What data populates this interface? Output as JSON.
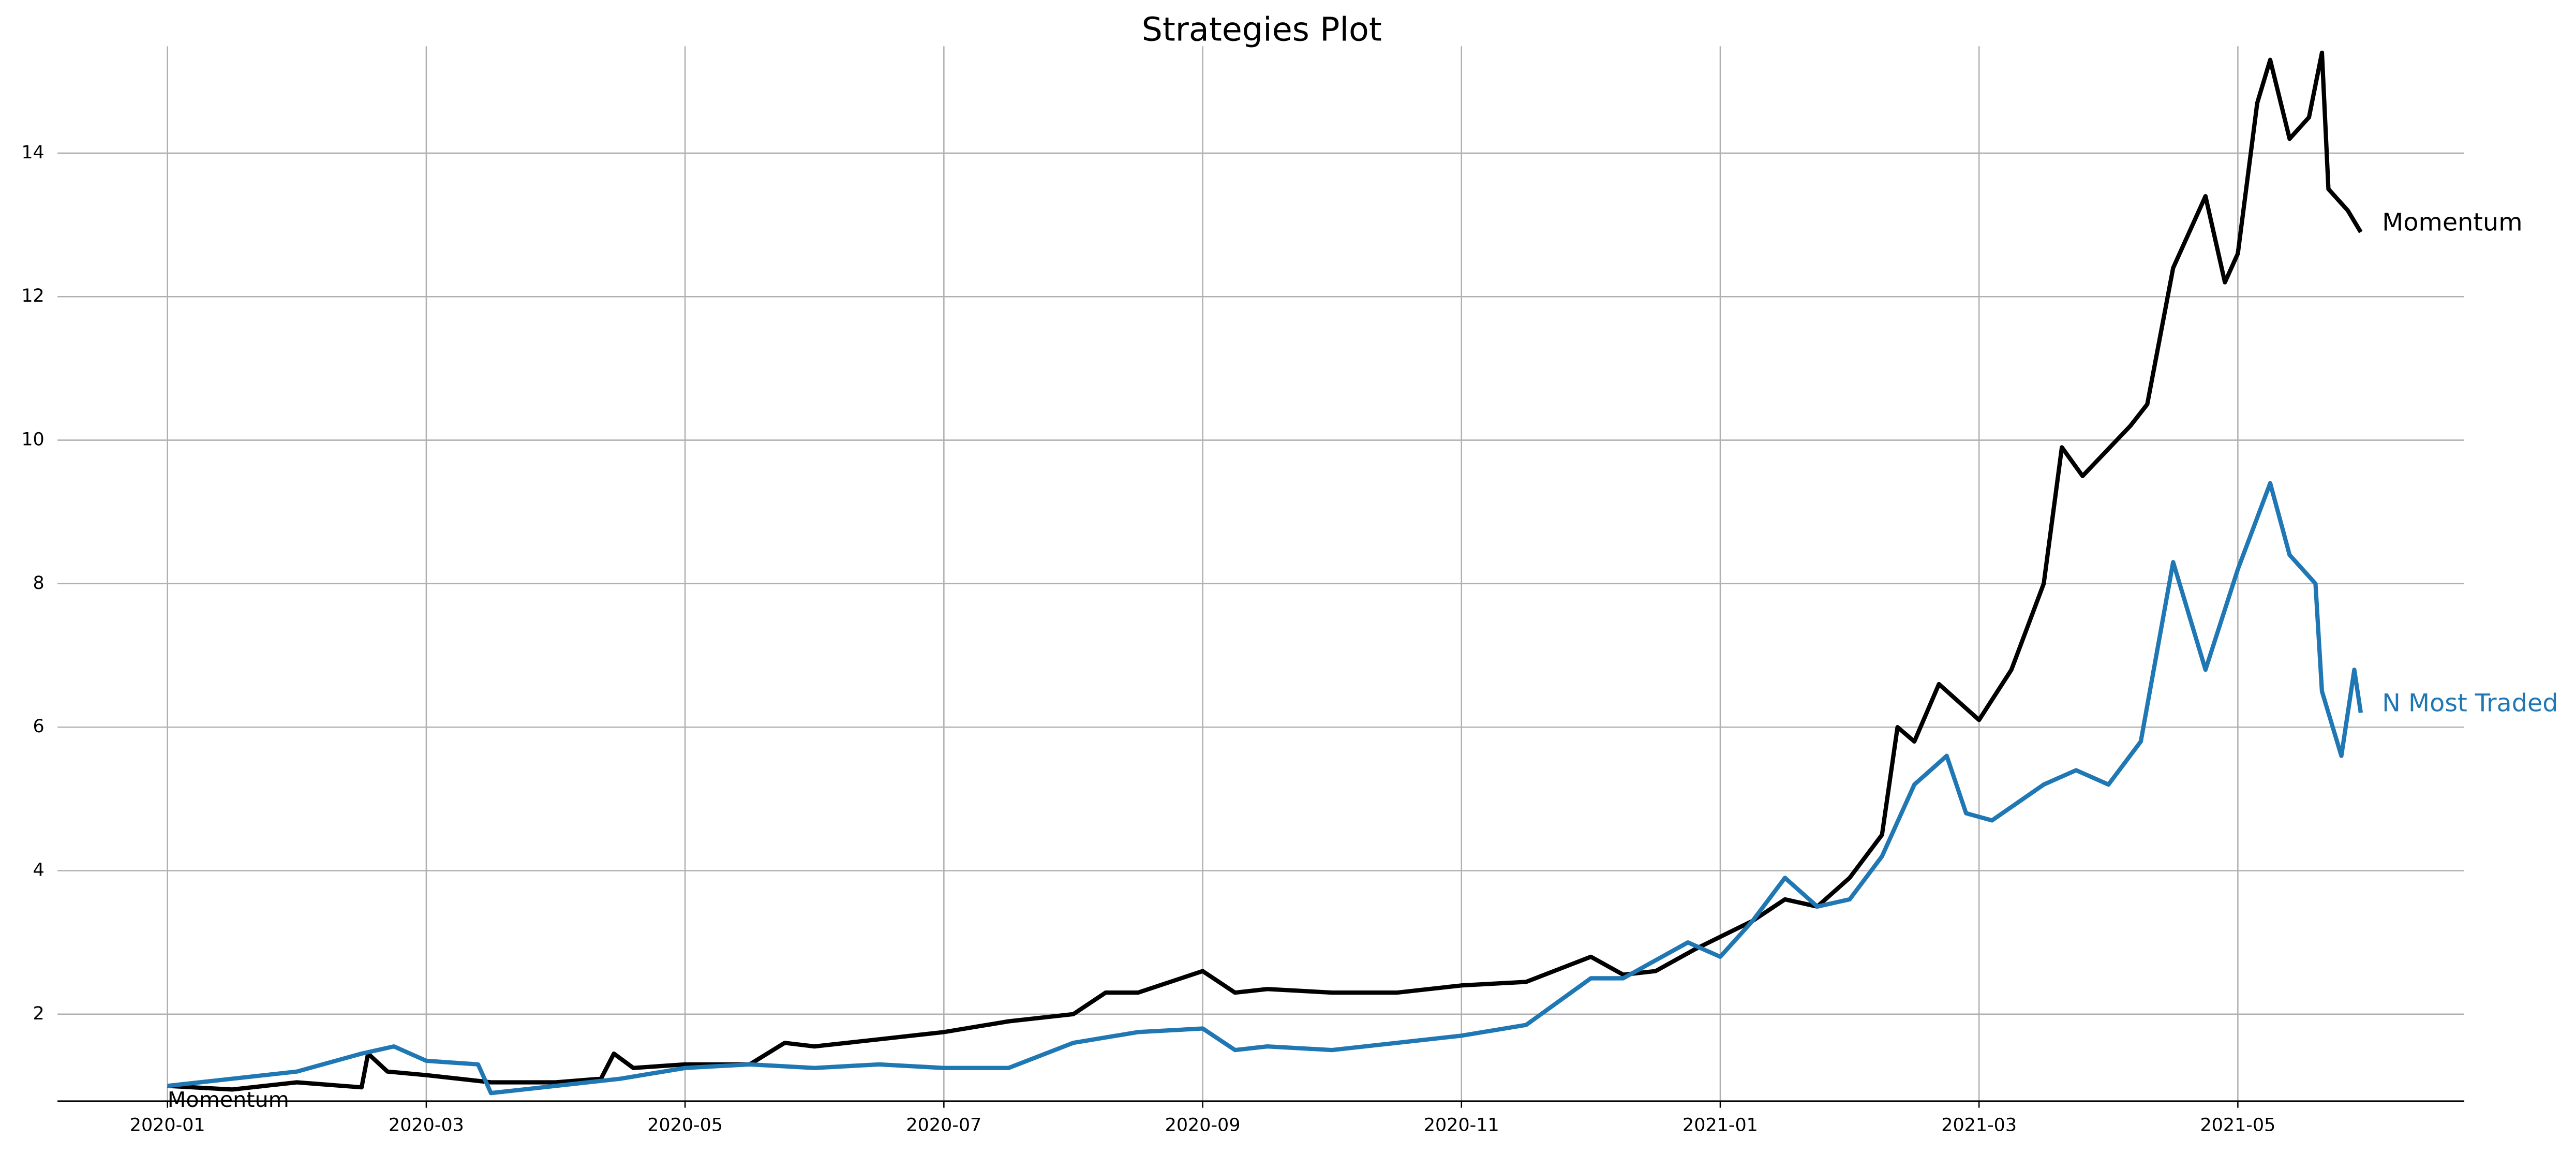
{
  "chart_data": {
    "type": "line",
    "title": "Strategies Plot",
    "annotation": "Momentum",
    "xlim": [
      -0.85,
      17.75
    ],
    "xticks": [
      {
        "value": 0,
        "label": "2020-01"
      },
      {
        "value": 2,
        "label": "2020-03"
      },
      {
        "value": 4,
        "label": "2020-05"
      },
      {
        "value": 6,
        "label": "2020-07"
      },
      {
        "value": 8,
        "label": "2020-09"
      },
      {
        "value": 10,
        "label": "2020-11"
      },
      {
        "value": 12,
        "label": "2021-01"
      },
      {
        "value": 14,
        "label": "2021-03"
      },
      {
        "value": 16,
        "label": "2021-05"
      }
    ],
    "ylim": [
      0.787,
      15.49
    ],
    "yticks": [
      2,
      4,
      6,
      8,
      10,
      12,
      14
    ],
    "grid": true,
    "series": [
      {
        "name": "Momentum",
        "color": "#000000",
        "x": [
          0,
          0.5,
          1,
          1.5,
          1.55,
          1.7,
          2,
          2.5,
          3,
          3.35,
          3.45,
          3.6,
          4,
          4.5,
          4.77,
          5,
          5.5,
          6,
          6.5,
          7,
          7.25,
          7.5,
          8,
          8.25,
          8.5,
          9,
          9.5,
          10,
          10.5,
          11,
          11.25,
          11.5,
          11.8,
          12.25,
          12.5,
          12.75,
          13,
          13.25,
          13.37,
          13.5,
          13.69,
          14,
          14.25,
          14.5,
          14.64,
          14.8,
          15.17,
          15.3,
          15.5,
          15.75,
          15.9,
          16,
          16.15,
          16.25,
          16.4,
          16.55,
          16.65,
          16.7,
          16.85,
          16.95
        ],
        "values": [
          1.0,
          0.95,
          1.05,
          0.98,
          1.45,
          1.2,
          1.15,
          1.05,
          1.05,
          1.1,
          1.45,
          1.25,
          1.3,
          1.3,
          1.6,
          1.55,
          1.65,
          1.75,
          1.9,
          2.0,
          2.3,
          2.3,
          2.6,
          2.3,
          2.35,
          2.3,
          2.3,
          2.4,
          2.45,
          2.8,
          2.55,
          2.6,
          2.9,
          3.3,
          3.6,
          3.5,
          3.9,
          4.5,
          6.0,
          5.8,
          6.6,
          6.1,
          6.8,
          8.0,
          9.9,
          9.5,
          10.2,
          10.5,
          12.4,
          13.4,
          12.2,
          12.6,
          14.7,
          15.3,
          14.2,
          14.5,
          15.4,
          13.5,
          13.2,
          12.9
        ]
      },
      {
        "name": "N Most Traded",
        "color": "#1f77b4",
        "x": [
          0,
          0.5,
          1,
          1.5,
          1.75,
          2,
          2.4,
          2.5,
          3,
          3.5,
          4,
          4.5,
          5,
          5.5,
          6,
          6.5,
          7,
          7.5,
          8,
          8.25,
          8.5,
          9,
          9.5,
          10,
          10.5,
          11,
          11.25,
          11.75,
          12,
          12.25,
          12.5,
          12.75,
          13,
          13.25,
          13.5,
          13.75,
          13.9,
          14.1,
          14.5,
          14.75,
          15,
          15.25,
          15.5,
          15.75,
          16,
          16.25,
          16.4,
          16.6,
          16.65,
          16.8,
          16.9,
          16.95
        ],
        "values": [
          1.0,
          1.1,
          1.2,
          1.45,
          1.55,
          1.35,
          1.3,
          0.9,
          1.0,
          1.1,
          1.25,
          1.3,
          1.25,
          1.3,
          1.25,
          1.25,
          1.6,
          1.75,
          1.8,
          1.5,
          1.55,
          1.5,
          1.6,
          1.7,
          1.85,
          2.5,
          2.5,
          3.0,
          2.8,
          3.3,
          3.9,
          3.5,
          3.6,
          4.2,
          5.2,
          5.6,
          4.8,
          4.7,
          5.2,
          5.4,
          5.2,
          5.8,
          8.3,
          6.8,
          8.2,
          9.4,
          8.4,
          8.0,
          6.5,
          5.6,
          6.8,
          6.2
        ]
      }
    ]
  }
}
